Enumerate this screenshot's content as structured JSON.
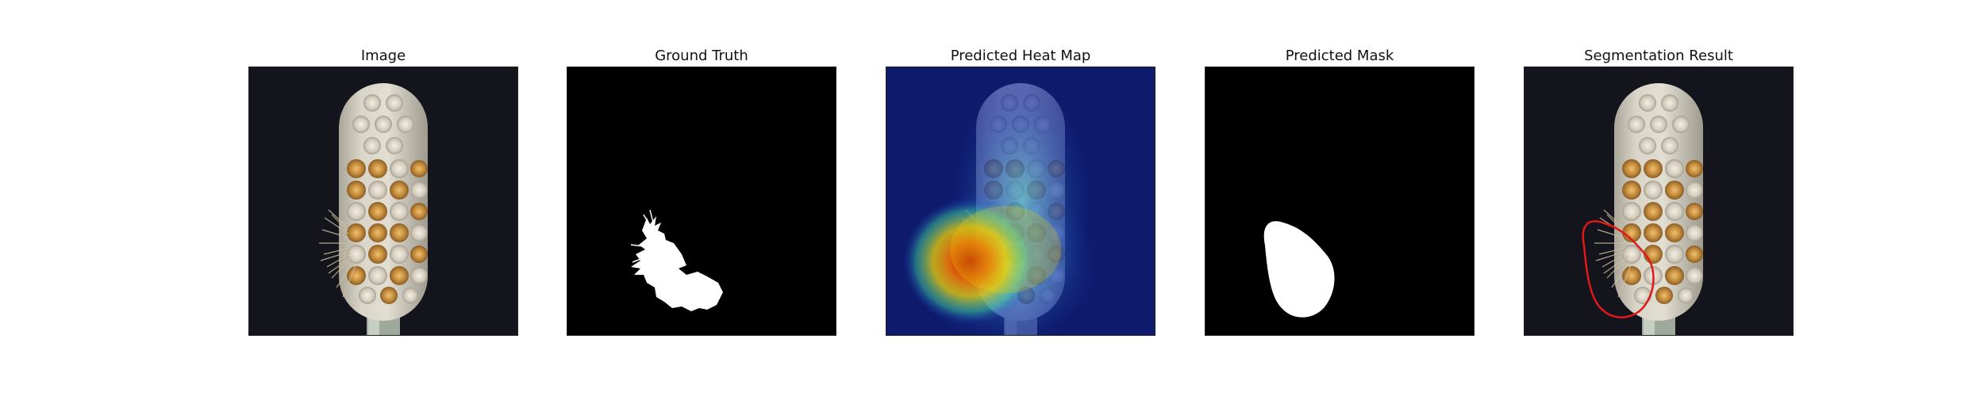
{
  "figure": {
    "panels": [
      {
        "title": "Image"
      },
      {
        "title": "Ground Truth"
      },
      {
        "title": "Predicted Heat Map"
      },
      {
        "title": "Predicted Mask"
      },
      {
        "title": "Segmentation Result"
      }
    ]
  },
  "colors": {
    "photo_background": "#14141c",
    "brush_head": "#d8d4c6",
    "bristle_gold": "#c9913e",
    "bristle_white": "#e6e0d2",
    "mask_background": "#000000",
    "mask_foreground": "#ffffff",
    "heatmap_low": "#0b1f9c",
    "heatmap_high": "#c41a00",
    "contour": "#e01818"
  }
}
